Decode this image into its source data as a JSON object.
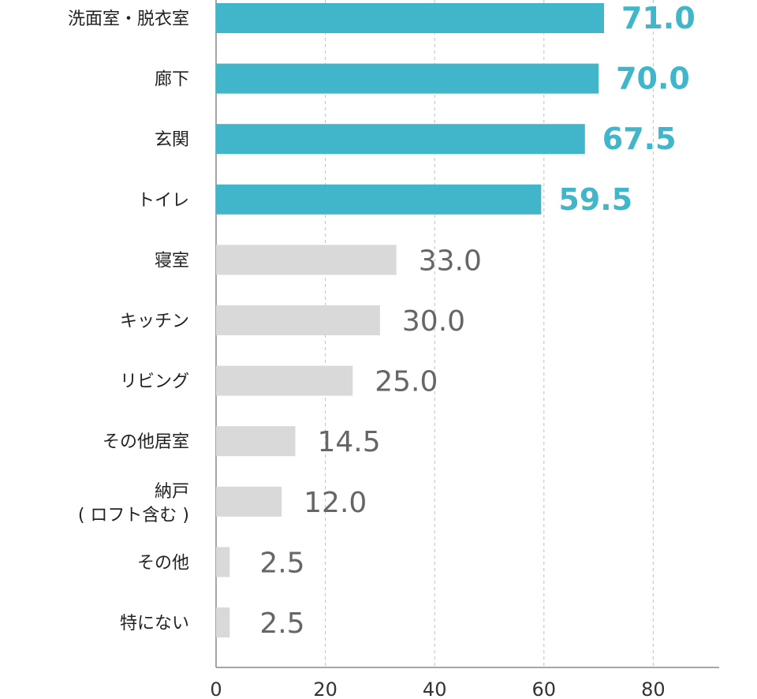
{
  "chart_data": {
    "type": "bar",
    "orientation": "horizontal",
    "categories": [
      "洗面室・脱衣室",
      "廊下",
      "玄関",
      "トイレ",
      "寝室",
      "キッチン",
      "リビング",
      "その他居室",
      "納戸\n( ロフト含む )",
      "その他",
      "特にない"
    ],
    "values": [
      71.0,
      70.0,
      67.5,
      59.5,
      33.0,
      30.0,
      25.0,
      14.5,
      12.0,
      2.5,
      2.5
    ],
    "value_labels": [
      "71.0",
      "70.0",
      "67.5",
      "59.5",
      "33.0",
      "30.0",
      "25.0",
      "14.5",
      "12.0",
      "2.5",
      "2.5"
    ],
    "highlighted_count": 4,
    "x_ticks": [
      0,
      20,
      40,
      60,
      80
    ],
    "xlim": [
      0,
      93
    ],
    "grid": "vertical dashed",
    "title": "",
    "xlabel": "",
    "ylabel": "",
    "colors": {
      "highlight": "#41B6CA",
      "normal": "#D9D9D9",
      "highlight_label": "#41B6CA",
      "normal_label": "#666666",
      "grid": "#BFBFBF",
      "axis": "#888888"
    }
  }
}
